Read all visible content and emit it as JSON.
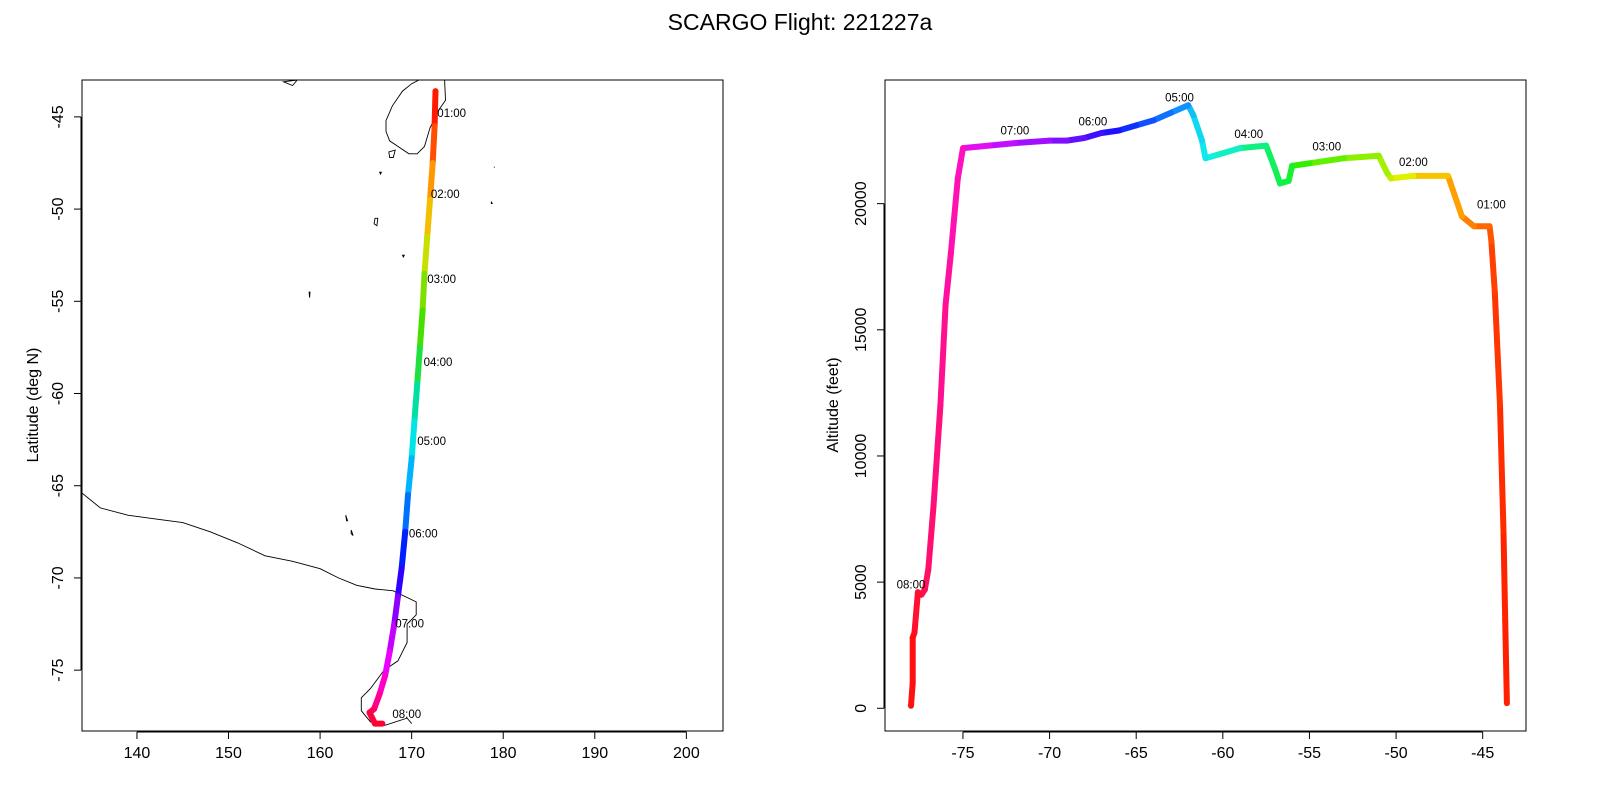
{
  "figure_title": "SCARGO Flight: 221227a",
  "chart_data": [
    {
      "type": "line",
      "panel": "map",
      "title": "",
      "xlabel": "",
      "ylabel": "Latitude (deg N)",
      "xlim": [
        134,
        204
      ],
      "ylim": [
        -78.3,
        -43.0
      ],
      "x_ticks": [
        140,
        150,
        160,
        170,
        180,
        190,
        200
      ],
      "y_ticks": [
        -45,
        -50,
        -55,
        -60,
        -65,
        -70,
        -75
      ],
      "line_color_scale": "rainbow by time",
      "series": [
        {
          "x": [
            172.6,
            172.5,
            172.3,
            172.0,
            171.7,
            171.4,
            171.2,
            170.9,
            170.6,
            170.3,
            170.0,
            169.6,
            169.3,
            168.9,
            168.5,
            168.1,
            167.6,
            167.1,
            166.5,
            165.9,
            165.4,
            166.0,
            166.8
          ],
          "y": [
            -43.6,
            -45.5,
            -47.5,
            -49.5,
            -51.5,
            -53.5,
            -55.5,
            -57.5,
            -59.5,
            -61.5,
            -63.5,
            -65.5,
            -67.5,
            -69.5,
            -71.0,
            -72.5,
            -74.0,
            -75.3,
            -76.3,
            -77.1,
            -77.3,
            -77.9,
            -77.9
          ],
          "colors": [
            "#ff1a00",
            "#ff4e00",
            "#ff9800",
            "#f3c000",
            "#c8e000",
            "#7fe000",
            "#46e000",
            "#20e040",
            "#00e0a0",
            "#00e6e6",
            "#00b4ff",
            "#0070ff",
            "#0020ff",
            "#3000ff",
            "#8c00ff",
            "#c400ff",
            "#ea00ff",
            "#ff00cc",
            "#ff0090",
            "#ff0060",
            "#ff0040",
            "#ff0030",
            "#ff0020"
          ]
        }
      ],
      "time_labels": [
        {
          "text": "01:00",
          "x": 172.8,
          "y": -45.0
        },
        {
          "text": "02:00",
          "x": 172.1,
          "y": -49.4
        },
        {
          "text": "03:00",
          "x": 171.7,
          "y": -54.0
        },
        {
          "text": "04:00",
          "x": 171.3,
          "y": -58.5
        },
        {
          "text": "05:00",
          "x": 170.6,
          "y": -62.8
        },
        {
          "text": "06:00",
          "x": 169.7,
          "y": -67.8
        },
        {
          "text": "07:00",
          "x": 168.2,
          "y": -72.7
        },
        {
          "text": "08:00",
          "x": 167.9,
          "y": -77.6
        }
      ],
      "coastlines": [
        {
          "name": "New Zealand South Island",
          "points": [
            [
              172.6,
              -43.0
            ],
            [
              173.6,
              -43.0
            ],
            [
              173.7,
              -44.1
            ],
            [
              173.0,
              -44.6
            ],
            [
              172.0,
              -45.6
            ],
            [
              171.4,
              -46.6
            ],
            [
              170.6,
              -47.0
            ],
            [
              169.7,
              -47.0
            ],
            [
              168.5,
              -46.6
            ],
            [
              167.6,
              -46.3
            ],
            [
              167.2,
              -45.8
            ],
            [
              167.2,
              -45.2
            ],
            [
              167.9,
              -44.4
            ],
            [
              169.0,
              -43.6
            ],
            [
              170.0,
              -43.2
            ],
            [
              170.8,
              -43.0
            ]
          ]
        },
        {
          "name": "Victoria Land / Ross Ice Shelf coast",
          "points": [
            [
              134.0,
              -65.4
            ],
            [
              136.0,
              -66.2
            ],
            [
              139.0,
              -66.6
            ],
            [
              142.0,
              -66.8
            ],
            [
              145.0,
              -67.0
            ],
            [
              148.0,
              -67.5
            ],
            [
              151.0,
              -68.1
            ],
            [
              154.0,
              -68.8
            ],
            [
              157.0,
              -69.1
            ],
            [
              160.0,
              -69.5
            ],
            [
              162.0,
              -70.0
            ],
            [
              164.0,
              -70.4
            ],
            [
              166.0,
              -70.6
            ],
            [
              168.0,
              -70.7
            ],
            [
              170.5,
              -71.3
            ],
            [
              170.5,
              -72.0
            ],
            [
              169.5,
              -72.5
            ],
            [
              169.5,
              -73.5
            ],
            [
              168.5,
              -74.5
            ],
            [
              167.0,
              -75.0
            ],
            [
              165.5,
              -76.0
            ],
            [
              164.5,
              -76.5
            ],
            [
              164.5,
              -77.2
            ],
            [
              165.5,
              -77.8
            ],
            [
              167.0,
              -78.0
            ],
            [
              169.5,
              -77.6
            ],
            [
              170.0,
              -77.9
            ]
          ]
        }
      ],
      "islands": [
        {
          "name": "Stewart Island",
          "points": [
            [
              167.5,
              -46.9
            ],
            [
              168.2,
              -46.8
            ],
            [
              168.0,
              -47.2
            ],
            [
              167.6,
              -47.2
            ]
          ]
        },
        {
          "name": "Snares",
          "points": [
            [
              166.5,
              -48.0
            ],
            [
              166.7,
              -48.0
            ],
            [
              166.6,
              -48.1
            ]
          ]
        },
        {
          "name": "Auckland Islands",
          "points": [
            [
              166.0,
              -50.5
            ],
            [
              166.3,
              -50.5
            ],
            [
              166.2,
              -50.9
            ],
            [
              165.9,
              -50.8
            ]
          ]
        },
        {
          "name": "Campbell Island",
          "points": [
            [
              169.0,
              -52.5
            ],
            [
              169.2,
              -52.5
            ],
            [
              169.1,
              -52.6
            ]
          ]
        },
        {
          "name": "Macquarie Island",
          "points": [
            [
              158.8,
              -54.5
            ],
            [
              158.9,
              -54.5
            ],
            [
              158.85,
              -54.8
            ]
          ]
        },
        {
          "name": "Antipodes",
          "points": [
            [
              178.7,
              -49.6
            ],
            [
              178.8,
              -49.7
            ],
            [
              178.7,
              -49.7
            ]
          ]
        },
        {
          "name": "Balleny Islands",
          "points": [
            [
              162.8,
              -66.6
            ],
            [
              163.0,
              -66.9
            ],
            [
              162.9,
              -66.9
            ]
          ]
        },
        {
          "name": "Sturge Island",
          "points": [
            [
              163.4,
              -67.4
            ],
            [
              163.6,
              -67.7
            ],
            [
              163.4,
              -67.6
            ]
          ]
        },
        {
          "name": "Bounty Islands",
          "points": [
            [
              179.0,
              -47.7
            ],
            [
              179.05,
              -47.75
            ]
          ]
        },
        {
          "name": "Chatham rock",
          "points": [
            [
              156.0,
              -43.1
            ],
            [
              157.0,
              -43.3
            ],
            [
              157.5,
              -43.0
            ]
          ]
        }
      ]
    },
    {
      "type": "line",
      "panel": "altitude",
      "title": "",
      "xlabel": "",
      "ylabel": "Altitude (feet)",
      "xlim": [
        -79.5,
        -42.5
      ],
      "ylim": [
        -900,
        24900
      ],
      "x_ticks": [
        -75,
        -70,
        -65,
        -60,
        -55,
        -50,
        -45
      ],
      "y_ticks": [
        0,
        5000,
        10000,
        15000,
        20000
      ],
      "line_color_scale": "rainbow by time",
      "series": [
        {
          "x": [
            -43.6,
            -43.7,
            -43.8,
            -44.0,
            -44.3,
            -44.5,
            -44.6,
            -45.5,
            -46.2,
            -47.0,
            -49.0,
            -50.3,
            -50.5,
            -51.0,
            -53.0,
            -55.0,
            -56.0,
            -56.2,
            -56.7,
            -57.0,
            -57.5,
            -59.0,
            -60.5,
            -61.0,
            -61.2,
            -61.7,
            -62.0,
            -63.0,
            -64.0,
            -65.0,
            -66.0,
            -67.0,
            -68.0,
            -69.0,
            -70.0,
            -72.0,
            -73.5,
            -75.0,
            -75.3,
            -75.7,
            -76.0,
            -76.3,
            -76.7,
            -77.0,
            -77.2,
            -77.4,
            -77.6,
            -77.8,
            -77.9,
            -77.9,
            -78.0
          ],
          "y": [
            200,
            3500,
            7000,
            12000,
            16500,
            18500,
            19100,
            19100,
            19500,
            21100,
            21100,
            21000,
            21200,
            21900,
            21800,
            21600,
            21500,
            20900,
            20800,
            21400,
            22300,
            22200,
            21900,
            21800,
            22500,
            23500,
            23900,
            23600,
            23300,
            23100,
            22900,
            22800,
            22600,
            22500,
            22500,
            22400,
            22300,
            22200,
            21000,
            18000,
            16000,
            12000,
            8000,
            5500,
            4700,
            4500,
            4600,
            3000,
            2800,
            1000,
            100
          ],
          "colors": [
            "#ff2000",
            "#ff2400",
            "#ff2c00",
            "#ff3600",
            "#ff4000",
            "#ff5400",
            "#ff6800",
            "#ff8000",
            "#ffa000",
            "#f8c400",
            "#e0f000",
            "#c0f000",
            "#a4f000",
            "#8cf000",
            "#60f000",
            "#30f000",
            "#18f030",
            "#14f040",
            "#10f050",
            "#10f060",
            "#10f080",
            "#10f0c0",
            "#10f0e0",
            "#10e8f0",
            "#10d8f0",
            "#10c0f0",
            "#1090ff",
            "#1070ff",
            "#1050ff",
            "#1030ff",
            "#2010ff",
            "#4010ff",
            "#6010ff",
            "#8010ff",
            "#a010ff",
            "#c010ff",
            "#e010f0",
            "#ff10c0",
            "#ff10b0",
            "#ff10a0",
            "#ff1090",
            "#ff1080",
            "#ff1070",
            "#ff1060",
            "#ff1050",
            "#ff1040",
            "#ff1030",
            "#ff1020",
            "#ff1010",
            "#ff1010",
            "#ff1010"
          ]
        }
      ],
      "time_labels": [
        {
          "text": "01:00",
          "x": -44.5,
          "y": 19800
        },
        {
          "text": "02:00",
          "x": -49.0,
          "y": 21500
        },
        {
          "text": "03:00",
          "x": -54.0,
          "y": 22100
        },
        {
          "text": "04:00",
          "x": -58.5,
          "y": 22600
        },
        {
          "text": "05:00",
          "x": -62.5,
          "y": 24050
        },
        {
          "text": "06:00",
          "x": -67.5,
          "y": 23100
        },
        {
          "text": "07:00",
          "x": -72.0,
          "y": 22750
        },
        {
          "text": "08:00",
          "x": -78.0,
          "y": 4750
        }
      ]
    }
  ]
}
